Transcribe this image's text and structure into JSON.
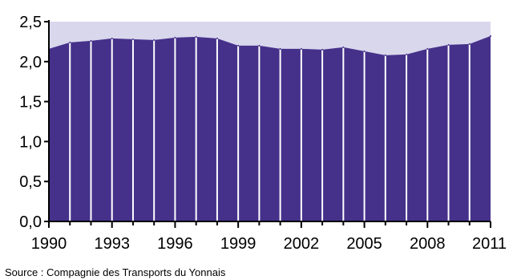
{
  "chart_data": {
    "type": "area",
    "x": [
      1990,
      1991,
      1992,
      1993,
      1994,
      1995,
      1996,
      1997,
      1998,
      1999,
      2000,
      2001,
      2002,
      2003,
      2004,
      2005,
      2006,
      2007,
      2008,
      2009,
      2010,
      2011
    ],
    "values": [
      2.16,
      2.24,
      2.26,
      2.29,
      2.28,
      2.27,
      2.3,
      2.31,
      2.29,
      2.2,
      2.2,
      2.16,
      2.16,
      2.15,
      2.18,
      2.13,
      2.08,
      2.09,
      2.16,
      2.21,
      2.22,
      2.32
    ],
    "ylim": [
      0,
      2.5
    ],
    "yticks": [
      "0,0",
      "0,5",
      "1,0",
      "1,5",
      "2,0",
      "2,5"
    ],
    "ytick_values": [
      0,
      0.5,
      1.0,
      1.5,
      2.0,
      2.5
    ],
    "xticks": [
      "1990",
      "1993",
      "1996",
      "1999",
      "2002",
      "2005",
      "2008",
      "2011"
    ],
    "xtick_values": [
      1990,
      1993,
      1996,
      1999,
      2002,
      2005,
      2008,
      2011
    ],
    "grid": false,
    "colors": {
      "fill": "#45318a",
      "background": "#d9d7ec",
      "separator": "#ffffff",
      "axis": "#000000"
    }
  },
  "source": "Source : Compagnie des Transports du Yonnais"
}
